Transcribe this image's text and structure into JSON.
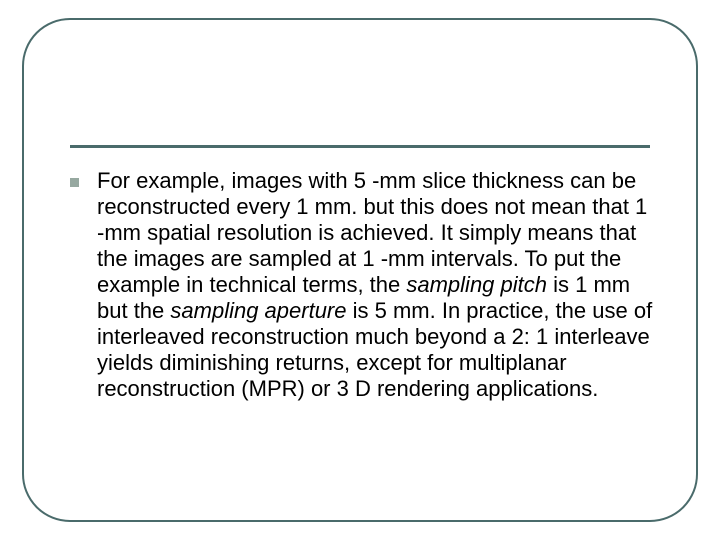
{
  "slide": {
    "background_color": "#ffffff",
    "frame": {
      "border_color": "#4a6b6b",
      "border_width": 2,
      "border_radius": 48
    },
    "divider": {
      "color": "#4a6b6b",
      "thickness": 3
    },
    "bullet": {
      "color": "#96a8a0",
      "size": 9,
      "shape": "square"
    },
    "body": {
      "font_family": "Arial",
      "font_size": 22,
      "line_height": 1.18,
      "color": "#000000",
      "segments": [
        {
          "text": "For example, images with 5 -mm slice thickness can be reconstructed every 1 mm. but this does not mean that 1 -mm spatial resolution is achieved. It simply means that the images are sampled at 1 -mm intervals. To put the example in technical terms, the ",
          "italic": false
        },
        {
          "text": "sampling pitch",
          "italic": true
        },
        {
          "text": " is 1 mm but the ",
          "italic": false
        },
        {
          "text": "sampling aperture",
          "italic": true
        },
        {
          "text": " is 5 mm. In practice, the use of interleaved reconstruction much beyond a 2: 1 interleave yields diminishing returns, except for multiplanar reconstruction (MPR) or 3 D rendering applications.",
          "italic": false
        }
      ]
    }
  }
}
